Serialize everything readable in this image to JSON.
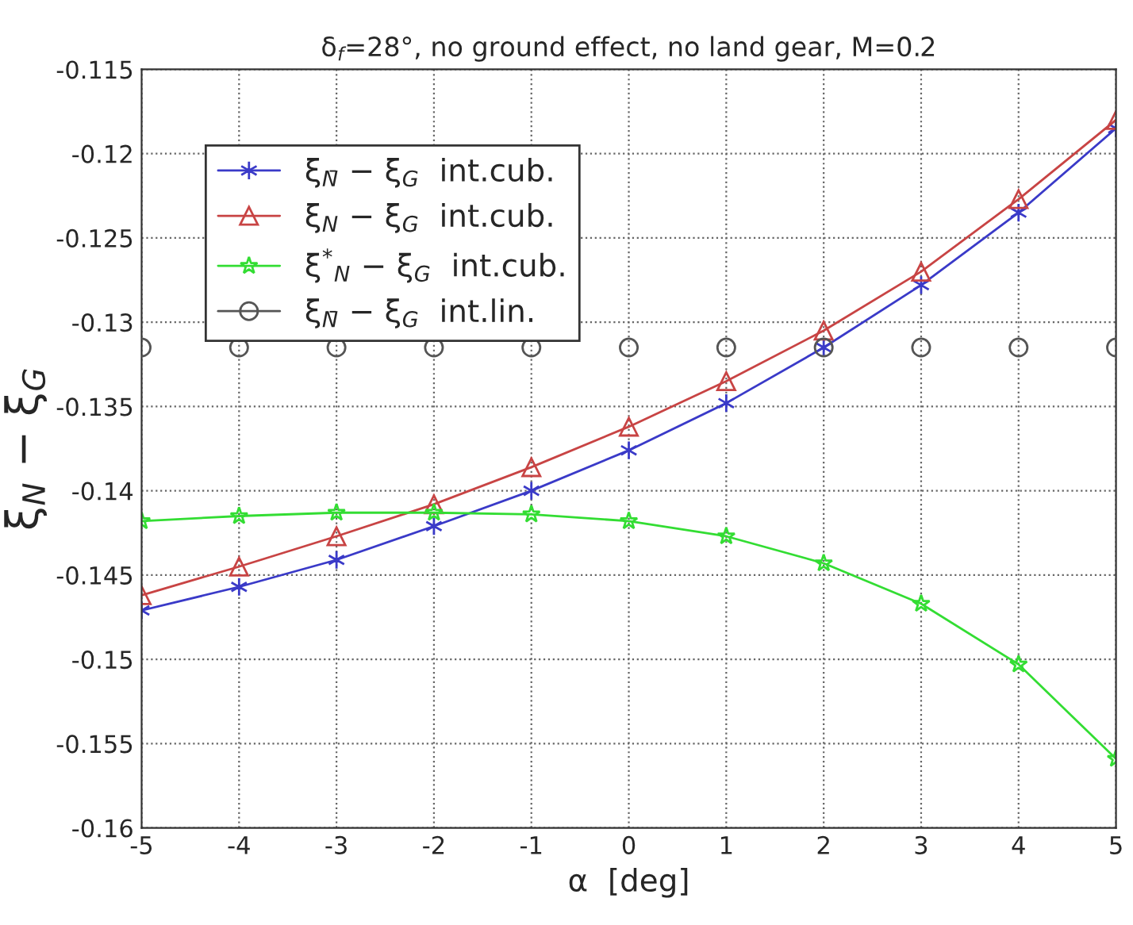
{
  "chart_data": {
    "type": "line",
    "title": "δ$_{f}$=28°, no ground effect, no land gear, M=0.2",
    "xlabel": "α  [deg]",
    "ylabel": "ξ$_{N}$ − ξ$_{G}$",
    "x": [
      -5,
      -4,
      -3,
      -2,
      -1,
      0,
      1,
      2,
      3,
      4,
      5
    ],
    "series": [
      {
        "name": "ξ$_{N̄}$ − ξ$_{G}$  int.cub.",
        "color": "#3a3ac8",
        "marker": "cross",
        "line_style": "solid",
        "values": [
          -0.1471,
          -0.1457,
          -0.1441,
          -0.1421,
          -0.14,
          -0.1376,
          -0.1348,
          -0.1315,
          -0.1278,
          -0.1235,
          -0.1185
        ]
      },
      {
        "name": "ξ$_{N}$ − ξ$_{G}$  int.cub.",
        "color": "#c84444",
        "marker": "triangle",
        "line_style": "solid",
        "values": [
          -0.1462,
          -0.1445,
          -0.1427,
          -0.1408,
          -0.1386,
          -0.1362,
          -0.1335,
          -0.1305,
          -0.127,
          -0.1227,
          -0.118
        ]
      },
      {
        "name": "ξ$^{*}$$_{N}$ − ξ$_{G}$  int.cub.",
        "color": "#33dd33",
        "marker": "star",
        "line_style": "solid",
        "values": [
          -0.1418,
          -0.1415,
          -0.1413,
          -0.1413,
          -0.1414,
          -0.1418,
          -0.1427,
          -0.1443,
          -0.1467,
          -0.1503,
          -0.1559
        ]
      },
      {
        "name": "ξ$_{N̄}$ − ξ$_{G}$  int.lin.",
        "type": "scatter",
        "color": "#555555",
        "marker": "circle",
        "values": [
          -0.1315,
          -0.1315,
          -0.1315,
          -0.1315,
          -0.1315,
          -0.1315,
          -0.1315,
          -0.1315,
          -0.1315,
          -0.1315,
          -0.1315
        ]
      }
    ],
    "xlim": [
      -5,
      5
    ],
    "xticks": [
      -5,
      -4,
      -3,
      -2,
      -1,
      0,
      1,
      2,
      3,
      4,
      5
    ],
    "ylim": [
      -0.16,
      -0.115
    ],
    "yticks": [
      -0.16,
      -0.155,
      -0.15,
      -0.145,
      -0.14,
      -0.135,
      -0.13,
      -0.125,
      -0.12,
      -0.115
    ],
    "grid": true,
    "legend": "top left"
  }
}
